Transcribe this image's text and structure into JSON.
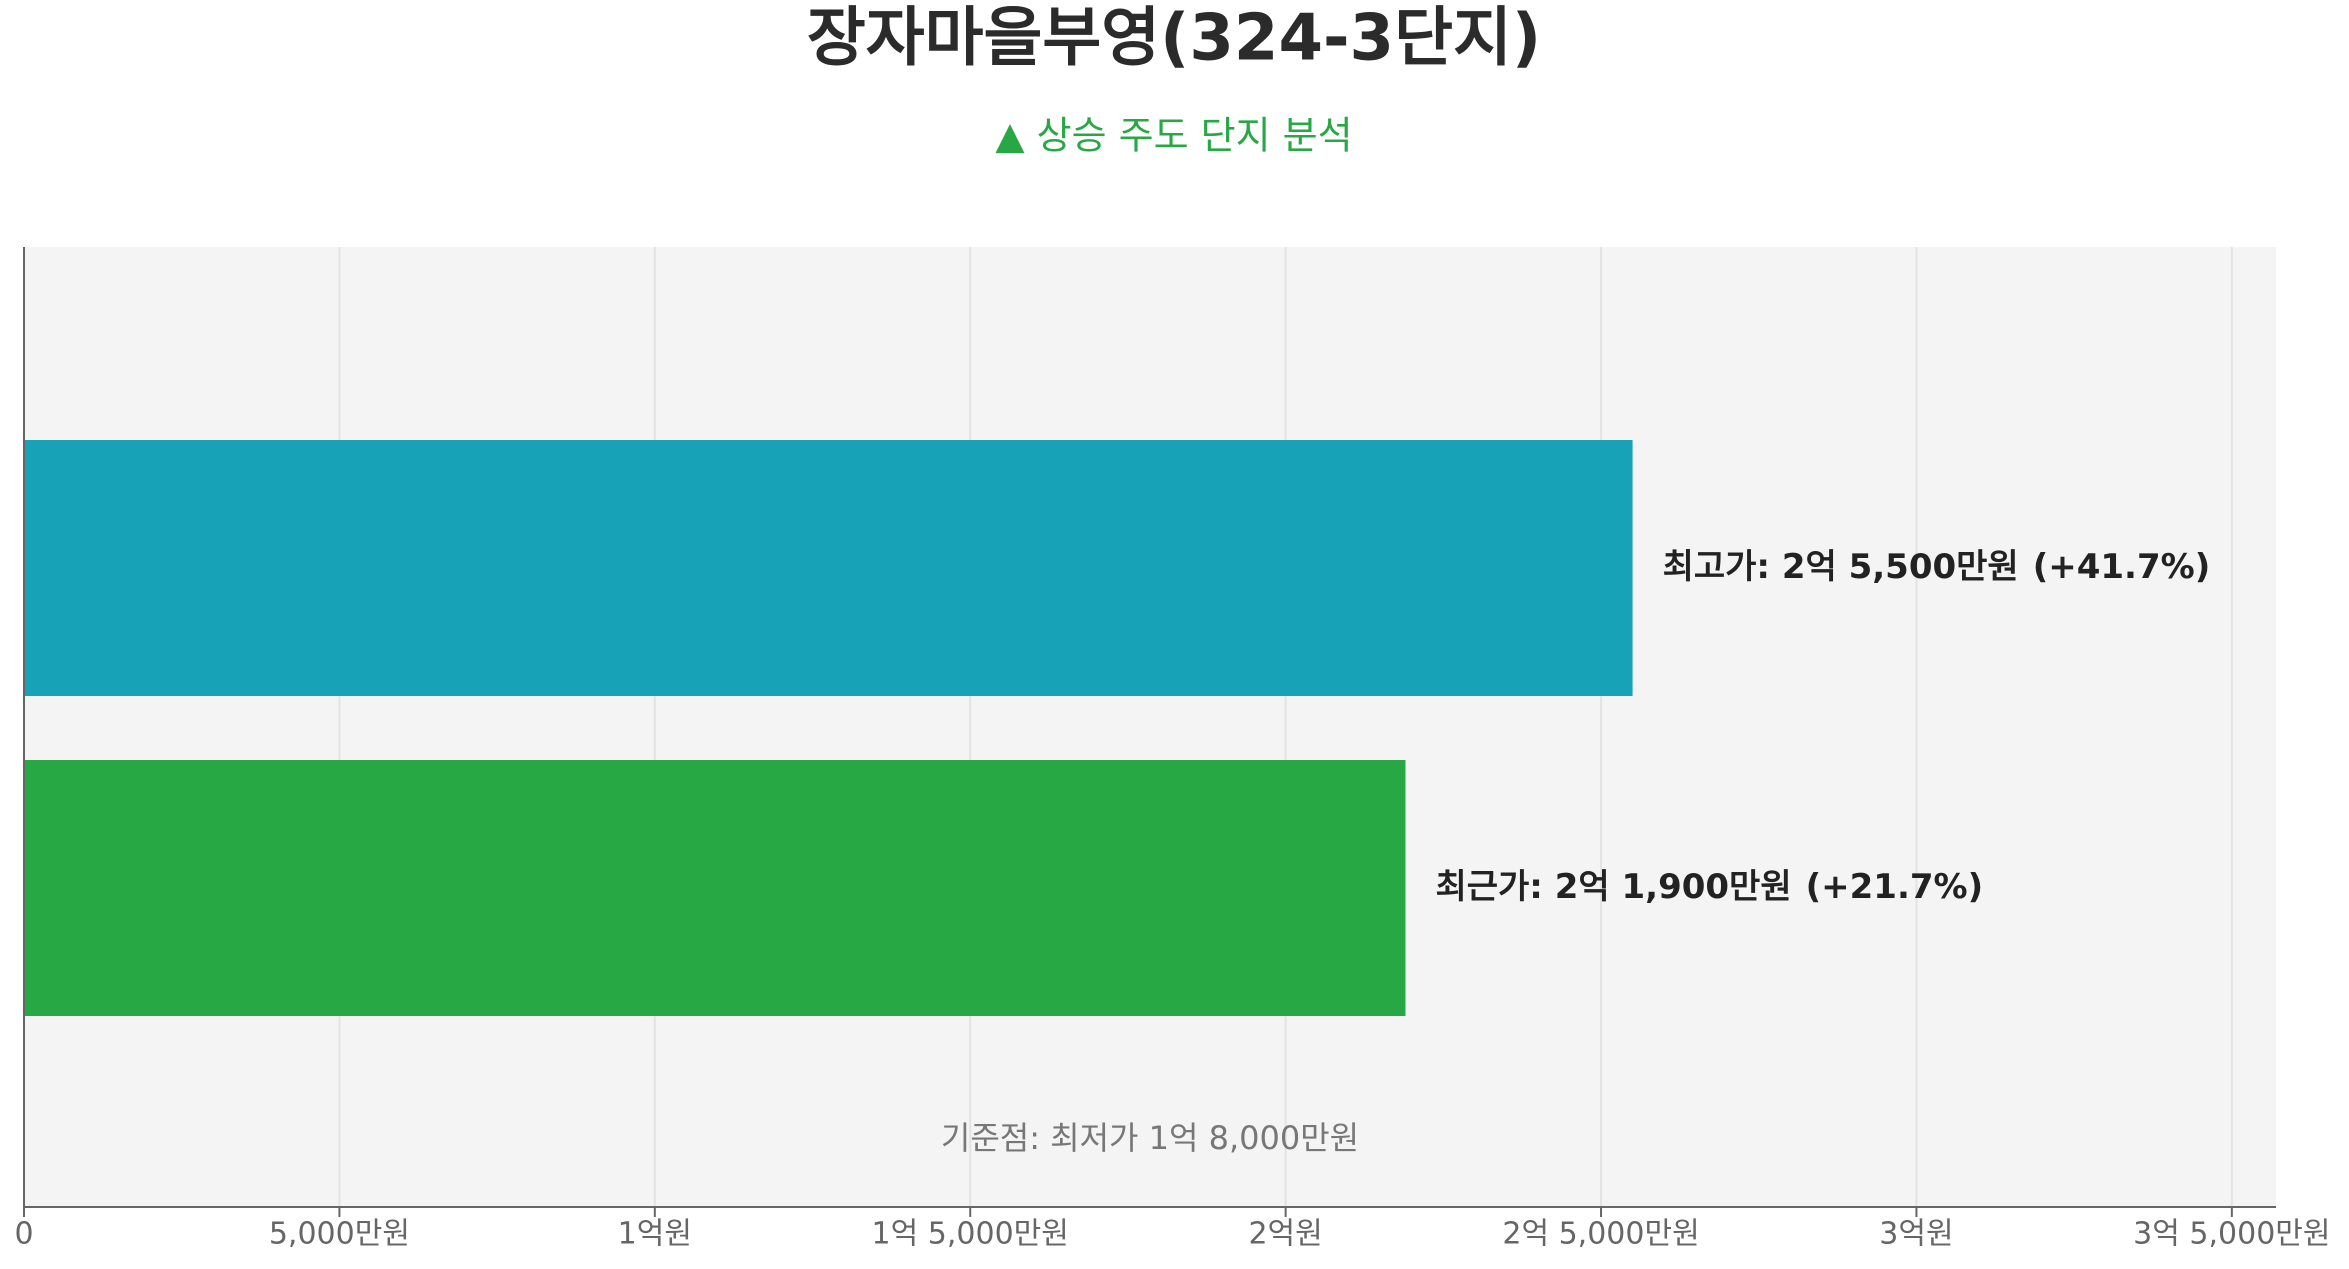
{
  "chart_data": {
    "type": "hbar",
    "title": "장자마을부영(324-3단지)",
    "subtitle": "▲ 상승 주도 단지 분석",
    "values": [
      25500,
      21900
    ],
    "value_labels": [
      "최고가: 2억 5,500만원",
      "최근가: 2억 1,900만원"
    ],
    "colors": [
      "#17a2b8",
      "#28a745"
    ],
    "changes": [
      {
        "value": 41.7,
        "label": "(+41.7%)"
      },
      {
        "value": 21.7,
        "label": "(+21.7%)"
      }
    ],
    "baseline_note": "기준점: 최저가 1억 8,000만원",
    "xlim": [
      0,
      35700
    ],
    "xticks": [
      0,
      {
        "value": 5000,
        "label": "5,000만원"
      },
      {
        "value": 10000,
        "label": "1억원"
      },
      {
        "value": 15000,
        "label": "1억 5,000만원"
      },
      {
        "value": 20000,
        "label": "2억원"
      },
      {
        "value": 25000,
        "label": "2억 5,000만원"
      },
      {
        "value": 30000,
        "label": "3억원"
      },
      {
        "value": 35000,
        "label": "3억 5,000만원"
      }
    ],
    "grid": true
  }
}
